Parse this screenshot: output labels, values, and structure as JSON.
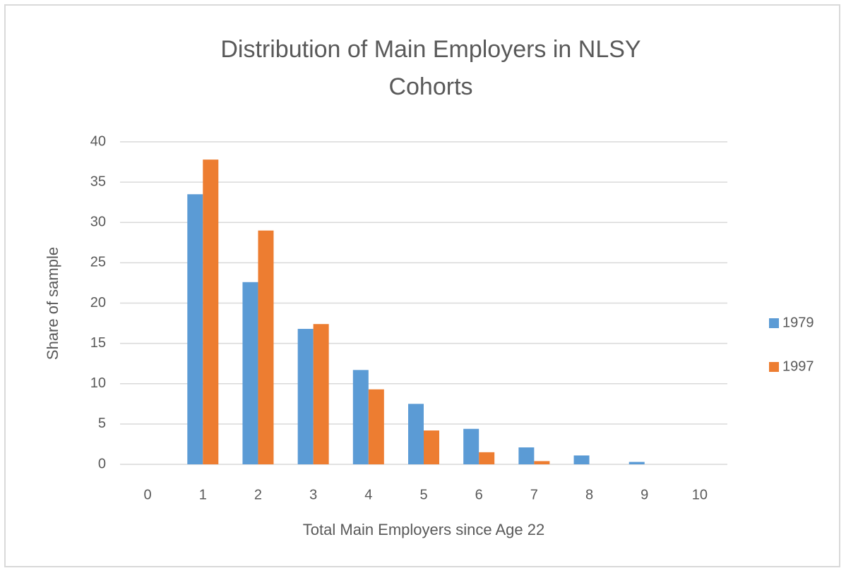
{
  "chart_data": {
    "type": "bar",
    "title": "Distribution of Main Employers in NLSY Cohorts",
    "x_label": "Total Main Employers since Age 22",
    "y_label": "Share of sample",
    "categories": [
      "0",
      "1",
      "2",
      "3",
      "4",
      "5",
      "6",
      "7",
      "8",
      "9",
      "10"
    ],
    "series": [
      {
        "name": "1979",
        "color": "#5b9bd5",
        "values": [
          0,
          33.5,
          22.6,
          16.8,
          11.7,
          7.5,
          4.4,
          2.1,
          1.1,
          0.3,
          0
        ]
      },
      {
        "name": "1997",
        "color": "#ed7d31",
        "values": [
          0,
          37.8,
          29.0,
          17.4,
          9.3,
          4.2,
          1.5,
          0.4,
          0,
          0,
          0
        ]
      }
    ],
    "ylim": [
      0,
      40
    ],
    "yticks": [
      0,
      5,
      10,
      15,
      20,
      25,
      30,
      35,
      40
    ],
    "grid": true,
    "legend": "right"
  }
}
